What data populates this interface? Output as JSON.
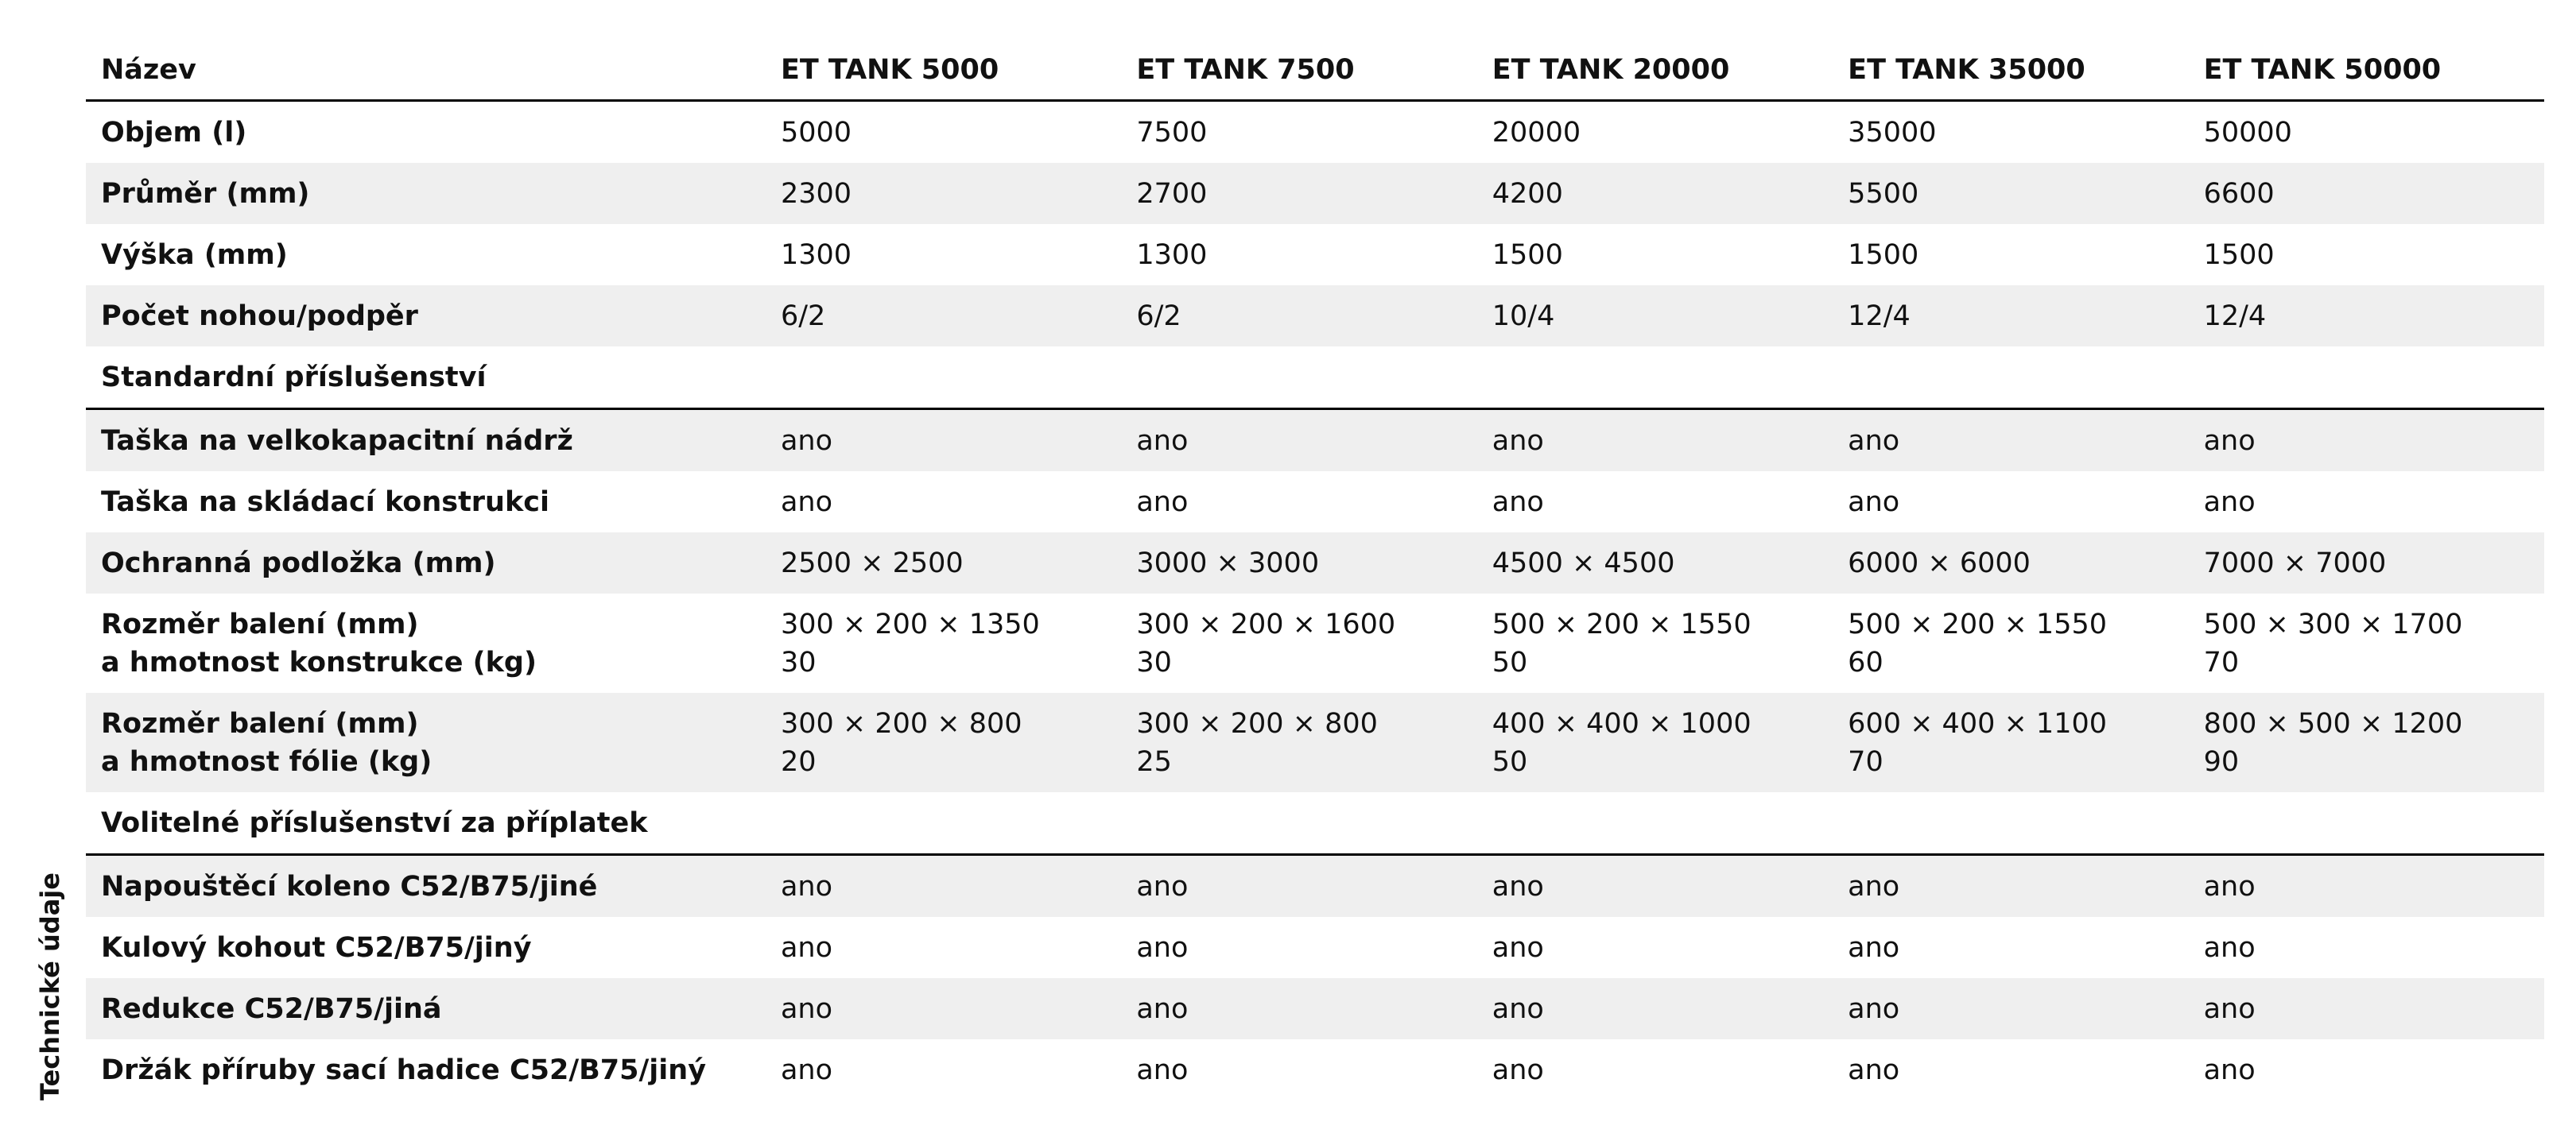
{
  "header": {
    "side_label": "Technické údaje"
  },
  "table": {
    "columns": [
      "Název",
      "ET TANK 5000",
      "ET TANK 7500",
      "ET TANK 20000",
      "ET TANK 35000",
      "ET TANK 50000"
    ],
    "rows": [
      {
        "label": "Objem (l)",
        "values": [
          "5000",
          "7500",
          "20000",
          "35000",
          "50000"
        ]
      },
      {
        "label": "Průměr (mm)",
        "values": [
          "2300",
          "2700",
          "4200",
          "5500",
          "6600"
        ]
      },
      {
        "label": "Výška (mm)",
        "values": [
          "1300",
          "1300",
          "1500",
          "1500",
          "1500"
        ]
      },
      {
        "label": "Počet nohou/podpěr",
        "values": [
          "6/2",
          "6/2",
          "10/4",
          "12/4",
          "12/4"
        ]
      }
    ],
    "sections": [
      {
        "title": "Standardní příslušenství",
        "rows": [
          {
            "label": "Taška na velkokapacitní nádrž",
            "values": [
              "ano",
              "ano",
              "ano",
              "ano",
              "ano"
            ]
          },
          {
            "label": "Taška na skládací konstrukci",
            "values": [
              "ano",
              "ano",
              "ano",
              "ano",
              "ano"
            ]
          },
          {
            "label": "Ochranná podložka (mm)",
            "values": [
              "2500 × 2500",
              "3000 × 3000",
              "4500 × 4500",
              "6000 × 6000",
              "7000 × 7000"
            ]
          },
          {
            "label": "Rozměr balení (mm)\na hmotnost konstrukce (kg)",
            "values": [
              "300 × 200 × 1350\n30",
              "300 × 200 × 1600\n30",
              "500 × 200 × 1550\n50",
              "500 × 200 × 1550\n60",
              "500 × 300 × 1700\n70"
            ]
          },
          {
            "label": "Rozměr balení (mm)\na hmotnost fólie (kg)",
            "values": [
              "300 × 200 × 800\n20",
              "300 × 200 × 800\n25",
              "400 × 400 × 1000\n50",
              "600 × 400 × 1100\n70",
              "800 × 500 × 1200\n90"
            ]
          }
        ]
      },
      {
        "title": "Volitelné příslušenství za příplatek",
        "rows": [
          {
            "label": "Napouštěcí koleno C52/B75/jiné",
            "values": [
              "ano",
              "ano",
              "ano",
              "ano",
              "ano"
            ]
          },
          {
            "label": "Kulový kohout C52/B75/jiný",
            "values": [
              "ano",
              "ano",
              "ano",
              "ano",
              "ano"
            ]
          },
          {
            "label": "Redukce C52/B75/jiná",
            "values": [
              "ano",
              "ano",
              "ano",
              "ano",
              "ano"
            ]
          },
          {
            "label": "Držák příruby sací hadice C52/B75/jiný",
            "values": [
              "ano",
              "ano",
              "ano",
              "ano",
              "ano"
            ]
          }
        ]
      }
    ]
  }
}
